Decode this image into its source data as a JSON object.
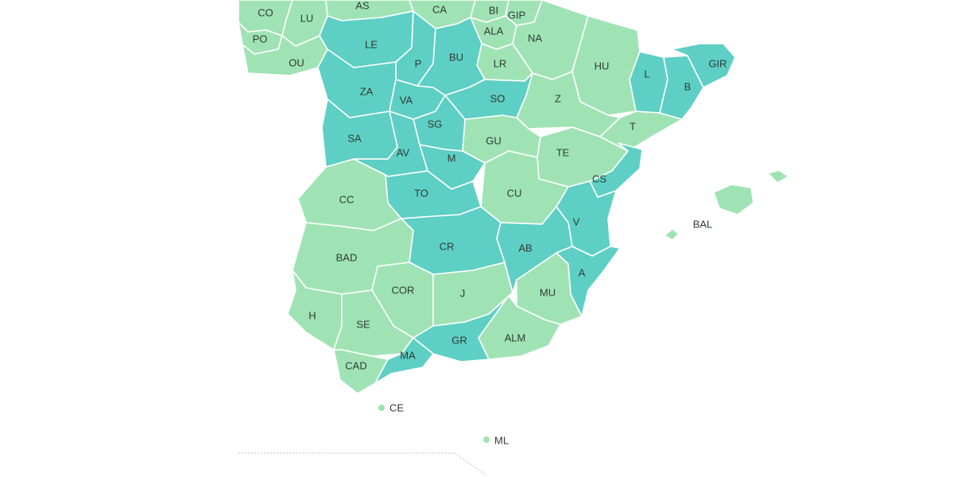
{
  "colors": {
    "teal": "#5ecfc4",
    "green": "#9fe3b4",
    "border": "#ffffff",
    "label": "#2f3b36"
  },
  "provinces": {
    "co": "CO",
    "lu": "LU",
    "as": "AS",
    "ca": "CA",
    "bi": "BI",
    "gip": "GIP",
    "po": "PO",
    "ala": "ALA",
    "na": "NA",
    "le": "LE",
    "ou": "OU",
    "bu": "BU",
    "p": "P",
    "lr": "LR",
    "hu": "HU",
    "gir": "GIR",
    "l": "L",
    "b": "B",
    "za": "ZA",
    "va": "VA",
    "so": "SO",
    "z": "Z",
    "sg": "SG",
    "t": "T",
    "sa": "SA",
    "gu": "GU",
    "av": "AV",
    "m": "M",
    "te": "TE",
    "cs": "CS",
    "cc": "CC",
    "to": "TO",
    "cu": "CU",
    "bal": "BAL",
    "v": "V",
    "cr": "CR",
    "ab": "AB",
    "bad": "BAD",
    "a": "A",
    "cor": "COR",
    "j": "J",
    "mu": "MU",
    "h": "H",
    "se": "SE",
    "alm": "ALM",
    "gr": "GR",
    "ma": "MA",
    "cad": "CAD",
    "ce": "CE",
    "ml": "ML"
  }
}
